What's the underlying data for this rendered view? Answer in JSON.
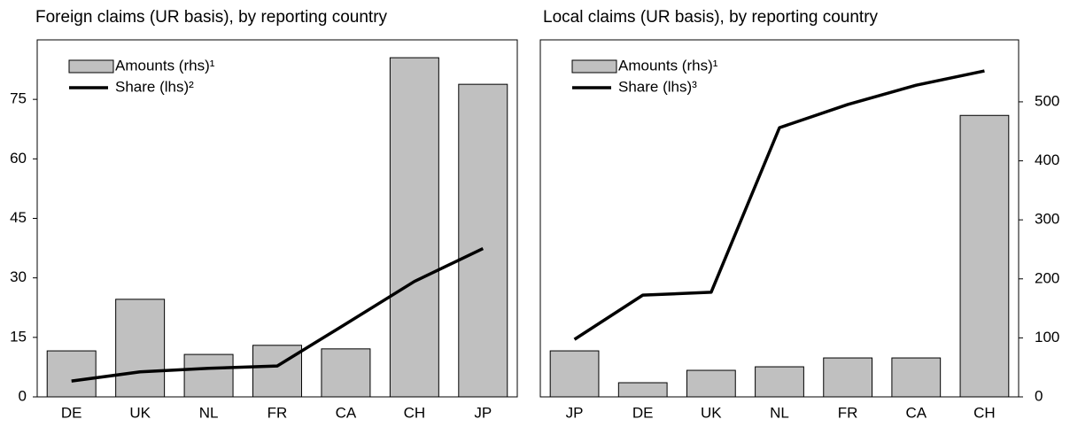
{
  "chart_data": [
    {
      "type": "bar-line",
      "title": "Foreign claims (UR basis), by reporting country",
      "categories": [
        "DE",
        "UK",
        "NL",
        "FR",
        "CA",
        "CH",
        "JP"
      ],
      "series": [
        {
          "name": "Amounts (rhs)¹",
          "type": "bar",
          "axis": "y2",
          "color": "#c0c0c0",
          "values": [
            11.6,
            24.6,
            10.7,
            13,
            12.1,
            85.5,
            78.8
          ]
        },
        {
          "name": "Share (lhs)²",
          "type": "line",
          "color": "#000000",
          "values": [
            4.0,
            6.3,
            7.2,
            7.8,
            18.4,
            29.1,
            37.4
          ]
        }
      ],
      "ylim": [
        0,
        90
      ],
      "yticks": [
        0,
        15,
        30,
        45,
        60,
        75
      ],
      "y2lim": [
        0,
        90
      ],
      "legend": "upper-left"
    },
    {
      "type": "bar-line",
      "title": "Local claims (UR basis), by reporting country",
      "categories": [
        "JP",
        "DE",
        "UK",
        "NL",
        "FR",
        "CA",
        "CH"
      ],
      "series": [
        {
          "name": "Amounts (rhs)¹",
          "type": "bar",
          "axis": "y2",
          "color": "#c0c0c0",
          "values": [
            78,
            24,
            45,
            51,
            66,
            66,
            477
          ]
        },
        {
          "name": "Share (lhs)³",
          "type": "line",
          "color": "#000000",
          "values": [
            16.1,
            28.5,
            29.3,
            75.4,
            81.9,
            87.3,
            91.3
          ]
        }
      ],
      "ylim": [
        0,
        100
      ],
      "y2lim": [
        0,
        605
      ],
      "y2ticks": [
        0,
        100,
        200,
        300,
        400,
        500
      ],
      "legend": "upper-left"
    }
  ]
}
